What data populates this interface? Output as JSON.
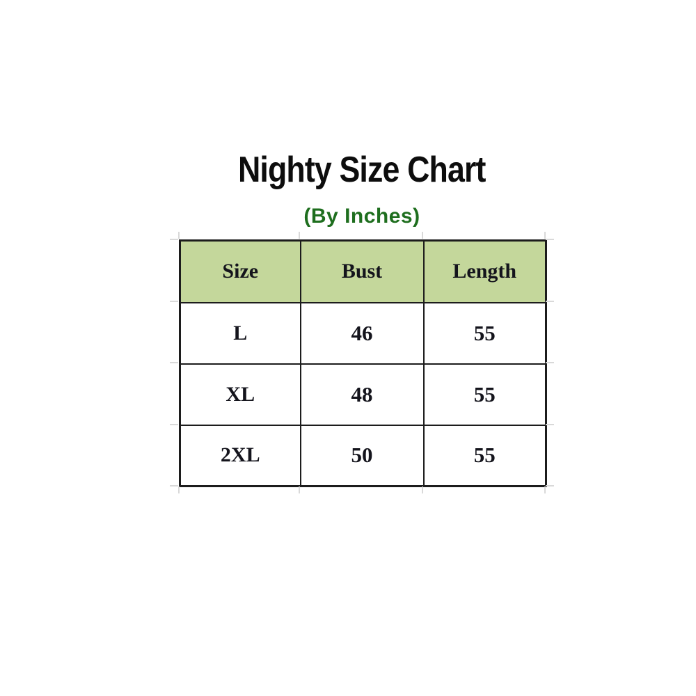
{
  "title": "Nighty Size Chart",
  "subtitle": "(By Inches)",
  "colors": {
    "header_bg": "#c4d79b",
    "subtitle_green": "#1e6e1e",
    "border": "#1c1c1c",
    "title_text": "#0d0d0d",
    "cell_text": "#14141c",
    "background": "#ffffff"
  },
  "table": {
    "columns": [
      "Size",
      "Bust",
      "Length"
    ],
    "rows": [
      {
        "size": "L",
        "bust": "46",
        "length": "55"
      },
      {
        "size": "XL",
        "bust": "48",
        "length": "55"
      },
      {
        "size": "2XL",
        "bust": "50",
        "length": "55"
      }
    ]
  },
  "chart_data": {
    "type": "table",
    "title": "Nighty Size Chart",
    "subtitle": "(By Inches)",
    "units": "inches",
    "columns": [
      "Size",
      "Bust",
      "Length"
    ],
    "rows": [
      [
        "L",
        46,
        55
      ],
      [
        "XL",
        48,
        55
      ],
      [
        "2XL",
        50,
        55
      ]
    ]
  }
}
